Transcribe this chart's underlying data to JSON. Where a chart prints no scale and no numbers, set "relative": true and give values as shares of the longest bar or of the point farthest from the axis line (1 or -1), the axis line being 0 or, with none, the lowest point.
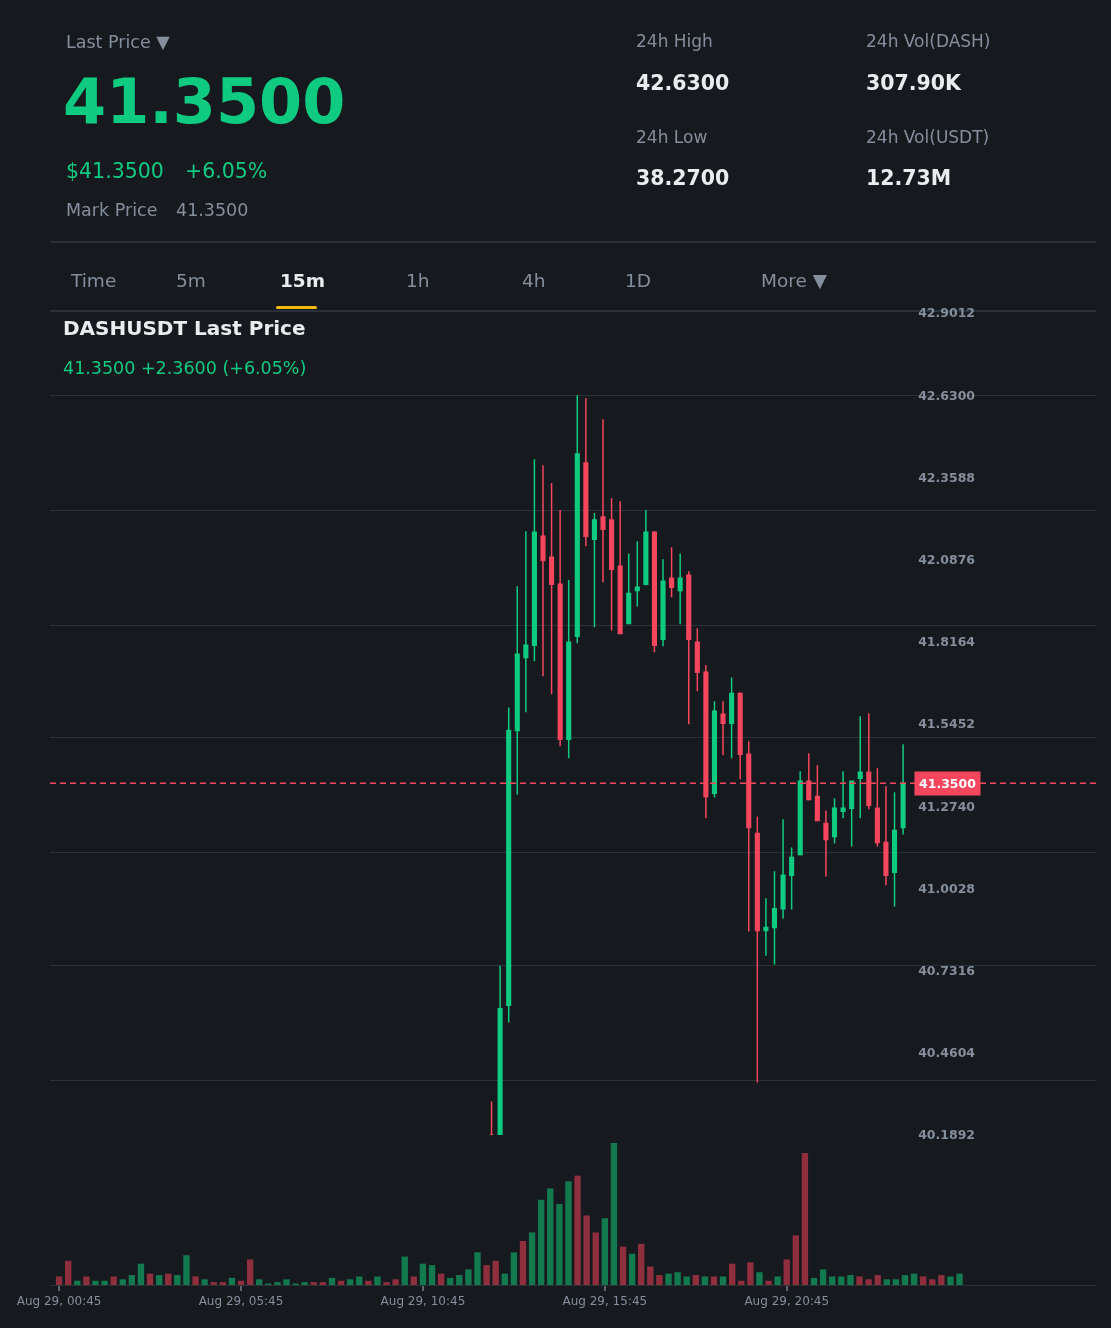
{
  "chart_data": [
    {
      "type": "other",
      "annotations": [
        "Last Price ▼",
        "41.3500",
        "$41.3500",
        "+6.05%",
        "Mark Price",
        "41.3500",
        "24h High",
        "42.6300",
        "24h Low",
        "38.2700",
        "24h Vol(DASH)",
        "307.90K",
        "24h Vol(USDT)",
        "12.73M",
        "Time",
        "5m",
        "15m",
        "1h",
        "4h",
        "1D",
        "More ▼"
      ]
    },
    {
      "type": "candlestick",
      "title": "DASHUSDT Last Price",
      "subtitle": "41.3500 +2.3600 (+6.05%)",
      "categories": [
        null,
        null,
        null,
        null,
        null,
        null,
        null,
        null,
        null,
        null,
        null,
        null,
        null,
        null,
        null,
        null,
        null,
        null,
        null,
        null,
        null,
        null,
        null,
        null,
        null,
        null,
        null,
        null,
        null,
        null,
        null,
        null,
        null,
        null,
        null,
        null,
        null,
        null,
        null,
        null,
        null,
        null,
        null,
        null,
        null,
        null,
        null,
        null,
        null,
        null,
        null,
        null,
        null,
        null,
        null,
        null,
        null,
        null,
        null,
        null,
        null,
        null,
        null,
        null,
        null,
        null,
        null,
        null,
        null,
        null,
        null,
        null,
        null,
        null,
        null,
        null,
        null,
        null,
        null,
        null,
        null,
        null,
        null,
        null,
        null,
        null,
        null,
        null,
        null,
        null,
        null,
        null,
        null,
        null,
        null,
        null,
        null,
        null,
        null,
        null,
        null,
        null,
        null,
        null,
        null,
        null,
        null,
        null,
        null,
        null,
        null,
        null,
        null,
        null,
        null,
        null,
        null,
        null,
        null,
        null,
        null,
        null
      ],
      "ohlc": [
        null,
        null,
        null,
        null,
        null,
        null,
        null,
        null,
        null,
        null,
        null,
        null,
        null,
        null,
        null,
        null,
        null,
        null,
        null,
        null,
        null,
        null,
        null,
        null,
        null,
        null,
        null,
        null,
        null,
        null,
        null,
        null,
        null,
        null,
        null,
        null,
        null,
        null,
        null,
        null,
        null,
        null,
        null,
        null,
        null,
        null,
        null,
        null,
        null,
        null,
        null,
        [
          40.1892,
          40.3,
          40.1892,
          40.1892
        ],
        [
          40.1892,
          40.748,
          40.1892,
          40.606
        ],
        [
          40.617,
          41.6,
          40.56,
          41.524
        ],
        [
          41.524,
          42.0,
          41.313,
          41.775
        ],
        [
          41.765,
          42.181,
          41.584,
          41.805
        ],
        [
          41.805,
          42.419,
          41.752,
          42.178
        ],
        [
          42.165,
          42.399,
          41.703,
          42.085
        ],
        [
          42.095,
          42.34,
          41.643,
          42.006
        ],
        [
          42.006,
          42.251,
          41.472,
          41.495
        ],
        [
          41.495,
          42.02,
          41.432,
          41.815
        ],
        [
          41.835,
          42.63,
          41.812,
          42.436
        ],
        [
          42.406,
          42.62,
          42.132,
          42.165
        ],
        [
          42.155,
          42.241,
          41.864,
          42.218
        ],
        [
          42.228,
          42.551,
          42.013,
          42.188
        ],
        [
          42.218,
          42.29,
          41.854,
          42.056
        ],
        [
          42.066,
          42.28,
          41.841,
          41.844
        ],
        [
          41.877,
          42.108,
          41.874,
          41.976
        ],
        [
          41.986,
          42.148,
          41.933,
          41.996
        ],
        [
          42.006,
          42.251,
          42.003,
          42.178
        ],
        [
          42.178,
          42.181,
          41.782,
          41.805
        ],
        [
          41.825,
          42.089,
          41.802,
          42.016
        ],
        [
          42.026,
          42.128,
          41.963,
          41.996
        ],
        [
          41.986,
          42.108,
          41.874,
          42.026
        ],
        [
          42.036,
          42.049,
          41.544,
          41.825
        ],
        [
          41.815,
          41.861,
          41.653,
          41.716
        ],
        [
          41.716,
          41.739,
          41.234,
          41.306
        ],
        [
          41.317,
          41.62,
          41.303,
          41.587
        ],
        [
          41.577,
          41.62,
          41.442,
          41.548
        ],
        [
          41.548,
          41.699,
          41.432,
          41.646
        ],
        [
          41.646,
          41.65,
          41.363,
          41.445
        ],
        [
          41.445,
          41.488,
          40.861,
          41.204
        ],
        [
          41.184,
          41.24,
          40.362,
          40.864
        ],
        [
          40.864,
          40.97,
          40.781,
          40.874
        ],
        [
          40.874,
          41.059,
          40.752,
          40.936
        ],
        [
          40.936,
          41.231,
          40.903,
          41.046
        ],
        [
          41.046,
          41.138,
          40.933,
          41.105
        ],
        [
          41.115,
          41.389,
          41.111,
          41.356
        ],
        [
          41.356,
          41.449,
          41.293,
          41.296
        ],
        [
          41.306,
          41.409,
          41.224,
          41.227
        ],
        [
          41.217,
          41.26,
          41.042,
          41.164
        ],
        [
          41.174,
          41.3,
          41.151,
          41.267
        ],
        [
          41.257,
          41.389,
          41.234,
          41.267
        ],
        [
          41.267,
          41.359,
          41.141,
          41.356
        ],
        [
          41.366,
          41.571,
          41.234,
          41.386
        ],
        [
          41.386,
          41.581,
          41.264,
          41.277
        ],
        [
          41.267,
          41.399,
          41.141,
          41.154
        ],
        [
          41.154,
          41.34,
          41.013,
          41.046
        ],
        [
          41.056,
          41.32,
          40.943,
          41.194
        ],
        [
          41.204,
          41.478,
          41.181,
          41.35
        ],
        null,
        null,
        null,
        null,
        null,
        null,
        null,
        null,
        null,
        null,
        null,
        null,
        null,
        null,
        null,
        null,
        null,
        null,
        null,
        null,
        null,
        null
      ],
      "colors": [
        null,
        null,
        null,
        null,
        null,
        null,
        null,
        null,
        null,
        null,
        null,
        null,
        null,
        null,
        null,
        null,
        null,
        null,
        null,
        null,
        null,
        null,
        null,
        null,
        null,
        null,
        null,
        null,
        null,
        null,
        null,
        null,
        null,
        null,
        null,
        null,
        null,
        null,
        null,
        null,
        null,
        null,
        null,
        null,
        null,
        null,
        null,
        null,
        null,
        null,
        null,
        "#f6465d",
        "#0ecb81",
        "#0ecb81",
        "#0ecb81",
        "#0ecb81",
        "#0ecb81",
        "#f6465d",
        "#f6465d",
        "#f6465d",
        "#0ecb81",
        "#0ecb81",
        "#f6465d",
        "#0ecb81",
        "#f6465d",
        "#f6465d",
        "#f6465d",
        "#0ecb81",
        "#0ecb81",
        "#0ecb81",
        "#f6465d",
        "#0ecb81",
        "#f6465d",
        "#0ecb81",
        "#f6465d",
        "#f6465d",
        "#f6465d",
        "#0ecb81",
        "#f6465d",
        "#0ecb81",
        "#f6465d",
        "#f6465d",
        "#f6465d",
        "#0ecb81",
        "#0ecb81",
        "#0ecb81",
        "#0ecb81",
        "#0ecb81",
        "#f6465d",
        "#f6465d",
        "#f6465d",
        "#0ecb81",
        "#0ecb81",
        "#0ecb81",
        "#0ecb81",
        "#f6465d",
        "#f6465d",
        "#f6465d",
        "#0ecb81",
        "#0ecb81",
        null,
        null,
        null,
        null,
        null,
        null,
        null,
        null,
        null,
        null,
        null,
        null,
        null,
        null,
        null,
        null,
        null,
        null,
        null,
        null,
        null,
        null
      ],
      "ylim": [
        40.1892,
        42.9012
      ],
      "yticks": [
        {
          "value": 42.9012,
          "label": "42.9012"
        },
        {
          "value": 42.63,
          "label": "42.6300"
        },
        {
          "value": 42.3588,
          "label": "42.3588"
        },
        {
          "value": 42.0876,
          "label": "42.0876"
        },
        {
          "value": 41.8164,
          "label": "41.8164"
        },
        {
          "value": 41.5452,
          "label": "41.5452"
        },
        {
          "value": 41.274,
          "label": "41.2740"
        },
        {
          "value": 41.0028,
          "label": "41.0028"
        },
        {
          "value": 40.7316,
          "label": "40.7316"
        },
        {
          "value": 40.4604,
          "label": "40.4604"
        },
        {
          "value": 40.1892,
          "label": "40.1892"
        },
        {
          "value": 42.63,
          "label": null
        },
        {
          "value": 42.25,
          "label": null
        },
        {
          "value": 41.87,
          "label": null
        },
        {
          "value": 41.5,
          "label": null
        },
        {
          "value": 41.12,
          "label": null
        },
        {
          "value": 40.75,
          "label": null
        },
        {
          "value": 40.37,
          "label": null
        }
      ],
      "grid": "y",
      "tick_labels": "y",
      "ref_lines": [
        {
          "axis": "y",
          "value": 41.35,
          "label": "41.3500",
          "color": "#f6465d",
          "line_style": "dashed"
        }
      ]
    },
    {
      "type": "bar",
      "relative": true,
      "tick_labels": "x",
      "x": [
        "--08-29T00:45",
        "--08-29T01:00",
        "--08-29T01:15",
        "--08-29T01:30",
        "--08-29T01:45",
        "--08-29T02:00",
        "--08-29T02:15",
        "--08-29T02:30",
        "--08-29T02:45",
        "--08-29T03:00",
        "--08-29T03:15",
        "--08-29T03:30",
        "--08-29T03:45",
        "--08-29T04:00",
        "--08-29T04:15",
        "--08-29T04:30",
        "--08-29T04:45",
        "--08-29T05:00",
        "--08-29T05:15",
        "--08-29T05:30",
        "--08-29T05:45",
        "--08-29T06:00",
        "--08-29T06:15",
        "--08-29T06:30",
        "--08-29T06:45",
        "--08-29T07:00",
        "--08-29T07:15",
        "--08-29T07:30",
        "--08-29T07:45",
        "--08-29T08:00",
        "--08-29T08:15",
        "--08-29T08:30",
        "--08-29T08:45",
        "--08-29T09:00",
        "--08-29T09:15",
        "--08-29T09:30",
        "--08-29T09:45",
        "--08-29T10:00",
        "--08-29T10:15",
        "--08-29T10:30",
        "--08-29T10:45",
        "--08-29T11:00",
        "--08-29T11:15",
        "--08-29T11:30",
        "--08-29T11:45",
        "--08-29T12:00",
        "--08-29T12:15",
        "--08-29T12:30",
        "--08-29T12:45",
        "--08-29T13:00",
        "--08-29T13:15",
        "--08-29T13:30",
        "--08-29T13:45",
        "--08-29T14:00",
        "--08-29T14:15",
        "--08-29T14:30",
        "--08-29T14:45",
        "--08-29T15:00",
        "--08-29T15:15",
        "--08-29T15:30",
        "--08-29T15:45",
        "--08-29T16:00",
        "--08-29T16:15",
        "--08-29T16:30",
        "--08-29T16:45",
        "--08-29T17:00",
        "--08-29T17:15",
        "--08-29T17:30",
        "--08-29T17:45",
        "--08-29T18:00",
        "--08-29T18:15",
        "--08-29T18:30",
        "--08-29T18:45",
        "--08-29T19:00",
        "--08-29T19:15",
        "--08-29T19:30",
        "--08-29T19:45",
        "--08-29T20:00",
        "--08-29T20:15",
        "--08-29T20:30",
        "--08-29T20:45",
        "--08-29T21:00",
        "--08-29T21:15",
        "--08-29T21:30",
        "--08-29T21:45",
        "--08-29T22:00",
        "--08-29T22:15",
        "--08-29T22:30",
        "--08-29T22:45",
        "--08-29T23:00",
        "--08-29T23:15",
        "--08-29T23:30",
        "--08-29T23:45",
        "--08-30T00:00",
        "--08-30T00:15",
        "--08-30T00:30",
        "--08-30T00:45",
        "--08-30T01:00",
        "--08-30T01:15",
        "--08-30T01:30"
      ],
      "values": [
        0.06,
        0.17,
        0.03,
        0.06,
        0.03,
        0.03,
        0.06,
        0.04,
        0.07,
        0.15,
        0.08,
        0.07,
        0.08,
        0.07,
        0.21,
        0.06,
        0.04,
        0.02,
        0.02,
        0.05,
        0.03,
        0.18,
        0.04,
        0.01,
        0.02,
        0.04,
        0.01,
        0.02,
        0.02,
        0.02,
        0.05,
        0.03,
        0.04,
        0.06,
        0.03,
        0.06,
        0.02,
        0.04,
        0.2,
        0.06,
        0.15,
        0.14,
        0.08,
        0.05,
        0.07,
        0.11,
        0.23,
        0.14,
        0.17,
        0.08,
        0.23,
        0.31,
        0.37,
        0.6,
        0.68,
        0.57,
        0.73,
        0.77,
        0.49,
        0.37,
        0.47,
        1,
        0.27,
        0.22,
        0.29,
        0.13,
        0.07,
        0.08,
        0.09,
        0.06,
        0.07,
        0.06,
        0.06,
        0.06,
        0.15,
        0.03,
        0.16,
        0.09,
        0.03,
        0.06,
        0.18,
        0.35,
        0.93,
        0.05,
        0.11,
        0.06,
        0.06,
        0.07,
        0.06,
        0.04,
        0.07,
        0.04,
        0.04,
        0.07,
        0.08,
        0.06,
        0.04,
        0.07,
        0.06,
        0.08
      ],
      "colors": [
        "#8f2f3e",
        "#8f2f3e",
        "#137a50",
        "#8f2f3e",
        "#137a50",
        "#137a50",
        "#8f2f3e",
        "#137a50",
        "#137a50",
        "#137a50",
        "#8f2f3e",
        "#137a50",
        "#8f2f3e",
        "#137a50",
        "#137a50",
        "#8f2f3e",
        "#137a50",
        "#8f2f3e",
        "#8f2f3e",
        "#137a50",
        "#8f2f3e",
        "#8f2f3e",
        "#137a50",
        "#137a50",
        "#137a50",
        "#137a50",
        "#137a50",
        "#137a50",
        "#8f2f3e",
        "#8f2f3e",
        "#137a50",
        "#8f2f3e",
        "#137a50",
        "#137a50",
        "#8f2f3e",
        "#137a50",
        "#8f2f3e",
        "#8f2f3e",
        "#137a50",
        "#8f2f3e",
        "#137a50",
        "#137a50",
        "#8f2f3e",
        "#137a50",
        "#137a50",
        "#137a50",
        "#137a50",
        "#8f2f3e",
        "#8f2f3e",
        "#137a50",
        "#137a50",
        "#8f2f3e",
        "#137a50",
        "#137a50",
        "#137a50",
        "#137a50",
        "#137a50",
        "#8f2f3e",
        "#8f2f3e",
        "#8f2f3e",
        "#137a50",
        "#137a50",
        "#8f2f3e",
        "#137a50",
        "#8f2f3e",
        "#8f2f3e",
        "#8f2f3e",
        "#137a50",
        "#137a50",
        "#137a50",
        "#8f2f3e",
        "#137a50",
        "#8f2f3e",
        "#137a50",
        "#8f2f3e",
        "#8f2f3e",
        "#8f2f3e",
        "#137a50",
        "#8f2f3e",
        "#137a50",
        "#8f2f3e",
        "#8f2f3e",
        "#8f2f3e",
        "#137a50",
        "#137a50",
        "#137a50",
        "#137a50",
        "#137a50",
        "#8f2f3e",
        "#8f2f3e",
        "#8f2f3e",
        "#137a50",
        "#137a50",
        "#137a50",
        "#137a50",
        "#8f2f3e",
        "#8f2f3e",
        "#8f2f3e",
        "#137a50",
        "#137a50"
      ],
      "xlim": [
        "--08-29T00:30",
        "--08-30T05:15"
      ],
      "xticks": [
        {
          "value": "--08-29T00:45",
          "label": "Aug 29, 00:45"
        },
        {
          "value": "--08-29T05:45",
          "label": "Aug 29, 05:45"
        },
        {
          "value": "--08-29T10:45",
          "label": "Aug 29, 10:45"
        },
        {
          "value": "--08-29T15:45",
          "label": "Aug 29, 15:45"
        },
        {
          "value": "--08-29T20:45",
          "label": "Aug 29, 20:45"
        }
      ]
    }
  ]
}
